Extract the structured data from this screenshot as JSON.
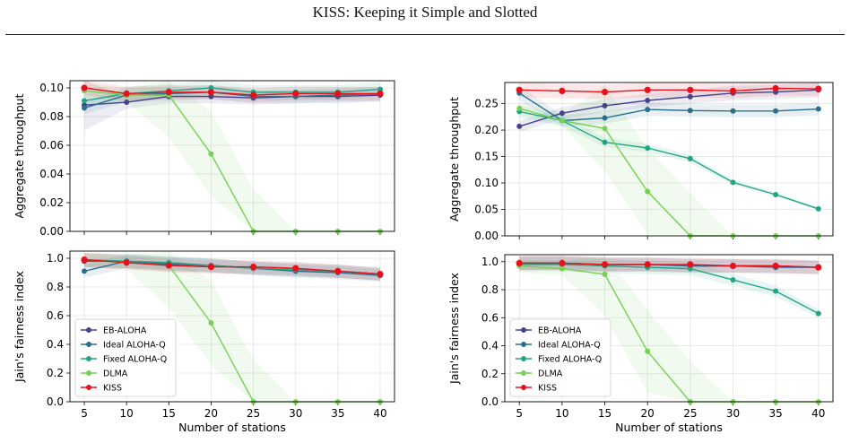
{
  "page": {
    "header": "KISS: Keeping it Simple and Slotted"
  },
  "colors": {
    "EB-ALOHA": "#45428a",
    "Ideal ALOHA-Q": "#2a6f8e",
    "Fixed ALOHA-Q": "#21a585",
    "DLMA": "#75d054",
    "KISS": "#e8101a"
  },
  "chart_data": [
    {
      "type": "line",
      "panel": "top-left",
      "title": "",
      "xlabel": "",
      "ylabel": "Aggregate throughput",
      "x": [
        5,
        10,
        15,
        20,
        25,
        30,
        35,
        40
      ],
      "ylim": [
        0,
        0.105
      ],
      "yticks": [
        "0.00",
        "0.02",
        "0.04",
        "0.06",
        "0.08",
        "0.10"
      ],
      "grid": true,
      "legend": "none",
      "series": [
        {
          "name": "EB-ALOHA",
          "values": [
            0.088,
            0.09,
            0.094,
            0.094,
            0.093,
            0.094,
            0.094,
            0.095
          ]
        },
        {
          "name": "Ideal ALOHA-Q",
          "values": [
            0.086,
            0.095,
            0.096,
            0.097,
            0.094,
            0.094,
            0.095,
            0.096
          ]
        },
        {
          "name": "Fixed ALOHA-Q",
          "values": [
            0.091,
            0.096,
            0.098,
            0.1,
            0.097,
            0.097,
            0.097,
            0.099
          ]
        },
        {
          "name": "DLMA",
          "values": [
            0.098,
            0.095,
            0.095,
            0.054,
            0.0,
            0.0,
            0.0,
            0.0
          ]
        },
        {
          "name": "KISS",
          "values": [
            0.1,
            0.096,
            0.097,
            0.097,
            0.095,
            0.096,
            0.096,
            0.096
          ]
        }
      ]
    },
    {
      "type": "line",
      "panel": "bottom-left",
      "title": "",
      "xlabel": "Number of stations",
      "ylabel": "Jain's fairness index",
      "x": [
        5,
        10,
        15,
        20,
        25,
        30,
        35,
        40
      ],
      "ylim": [
        0,
        1.05
      ],
      "yticks": [
        "0.0",
        "0.2",
        "0.4",
        "0.6",
        "0.8",
        "1.0"
      ],
      "xticks": [
        "5",
        "10",
        "15",
        "20",
        "25",
        "30",
        "35",
        "40"
      ],
      "grid": true,
      "legend": "lower-left",
      "series": [
        {
          "name": "EB-ALOHA",
          "values": [
            0.98,
            0.98,
            0.96,
            0.95,
            0.93,
            0.92,
            0.91,
            0.89
          ]
        },
        {
          "name": "Ideal ALOHA-Q",
          "values": [
            0.91,
            0.98,
            0.96,
            0.95,
            0.93,
            0.91,
            0.9,
            0.88
          ]
        },
        {
          "name": "Fixed ALOHA-Q",
          "values": [
            0.99,
            0.98,
            0.97,
            0.95,
            0.93,
            0.92,
            0.91,
            0.89
          ]
        },
        {
          "name": "DLMA",
          "values": [
            0.99,
            0.97,
            0.95,
            0.55,
            0.0,
            0.0,
            0.0,
            0.0
          ]
        },
        {
          "name": "KISS",
          "values": [
            0.99,
            0.97,
            0.95,
            0.94,
            0.94,
            0.93,
            0.91,
            0.89
          ]
        }
      ]
    },
    {
      "type": "line",
      "panel": "top-right",
      "title": "",
      "xlabel": "",
      "ylabel": "Aggregate throughput",
      "x": [
        5,
        10,
        15,
        20,
        25,
        30,
        35,
        40
      ],
      "ylim": [
        0,
        0.29
      ],
      "yticks": [
        "0.00",
        "0.05",
        "0.10",
        "0.15",
        "0.20",
        "0.25"
      ],
      "grid": true,
      "legend": "none",
      "series": [
        {
          "name": "EB-ALOHA",
          "values": [
            0.207,
            0.232,
            0.246,
            0.256,
            0.263,
            0.27,
            0.272,
            0.276
          ]
        },
        {
          "name": "Ideal ALOHA-Q",
          "values": [
            0.27,
            0.218,
            0.223,
            0.239,
            0.237,
            0.236,
            0.236,
            0.24
          ]
        },
        {
          "name": "Fixed ALOHA-Q",
          "values": [
            0.235,
            0.218,
            0.177,
            0.166,
            0.146,
            0.101,
            0.078,
            0.051
          ]
        },
        {
          "name": "DLMA",
          "values": [
            0.241,
            0.218,
            0.203,
            0.084,
            0.0,
            0.0,
            0.0,
            0.0
          ]
        },
        {
          "name": "KISS",
          "values": [
            0.276,
            0.274,
            0.272,
            0.276,
            0.276,
            0.274,
            0.279,
            0.278
          ]
        }
      ]
    },
    {
      "type": "line",
      "panel": "bottom-right",
      "title": "",
      "xlabel": "Number of stations",
      "ylabel": "Jain's fairness index",
      "x": [
        5,
        10,
        15,
        20,
        25,
        30,
        35,
        40
      ],
      "ylim": [
        0,
        1.05
      ],
      "yticks": [
        "0.0",
        "0.2",
        "0.4",
        "0.6",
        "0.8",
        "1.0"
      ],
      "xticks": [
        "5",
        "10",
        "15",
        "20",
        "25",
        "30",
        "35",
        "40"
      ],
      "grid": true,
      "legend": "lower-left",
      "series": [
        {
          "name": "EB-ALOHA",
          "values": [
            0.99,
            0.99,
            0.98,
            0.98,
            0.97,
            0.97,
            0.97,
            0.96
          ]
        },
        {
          "name": "Ideal ALOHA-Q",
          "values": [
            0.99,
            0.99,
            0.98,
            0.98,
            0.97,
            0.97,
            0.96,
            0.96
          ]
        },
        {
          "name": "Fixed ALOHA-Q",
          "values": [
            0.98,
            0.98,
            0.97,
            0.96,
            0.95,
            0.87,
            0.79,
            0.63
          ]
        },
        {
          "name": "DLMA",
          "values": [
            0.97,
            0.95,
            0.91,
            0.36,
            0.0,
            0.0,
            0.0,
            0.0
          ]
        },
        {
          "name": "KISS",
          "values": [
            0.99,
            0.99,
            0.98,
            0.98,
            0.98,
            0.97,
            0.97,
            0.96
          ]
        }
      ]
    }
  ]
}
